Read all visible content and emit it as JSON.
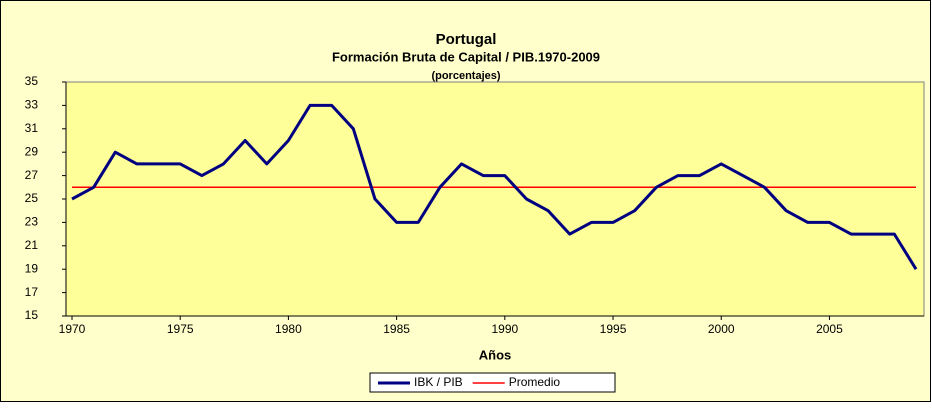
{
  "chart_data": {
    "type": "line",
    "title": "Portugal",
    "subtitle": "Formación Bruta de Capital / PIB.1970-2009",
    "subtitle2": "(porcentajes)",
    "x_label": "Años",
    "x": [
      1970,
      1971,
      1972,
      1973,
      1974,
      1975,
      1976,
      1977,
      1978,
      1979,
      1980,
      1981,
      1982,
      1983,
      1984,
      1985,
      1986,
      1987,
      1988,
      1989,
      1990,
      1991,
      1992,
      1993,
      1994,
      1995,
      1996,
      1997,
      1998,
      1999,
      2000,
      2001,
      2002,
      2003,
      2004,
      2005,
      2006,
      2007,
      2008,
      2009
    ],
    "series": [
      {
        "name": "IBK / PIB",
        "color": "#000080",
        "width": 3,
        "values": [
          25,
          26,
          29,
          28,
          28,
          28,
          27,
          28,
          30,
          28,
          30,
          33,
          33,
          31,
          25,
          23,
          23,
          26,
          28,
          27,
          27,
          25,
          24,
          22,
          23,
          23,
          24,
          26,
          27,
          27,
          28,
          27,
          26,
          24,
          23,
          23,
          22,
          22,
          22,
          19
        ]
      },
      {
        "name": "Promedio",
        "color": "#ff0000",
        "width": 1.5,
        "values": [
          26,
          26,
          26,
          26,
          26,
          26,
          26,
          26,
          26,
          26,
          26,
          26,
          26,
          26,
          26,
          26,
          26,
          26,
          26,
          26,
          26,
          26,
          26,
          26,
          26,
          26,
          26,
          26,
          26,
          26,
          26,
          26,
          26,
          26,
          26,
          26,
          26,
          26,
          26,
          26
        ]
      }
    ],
    "xlim": [
      1970,
      2009
    ],
    "xticks": [
      1970,
      1975,
      1980,
      1985,
      1990,
      1995,
      2000,
      2005
    ],
    "ylim": [
      15,
      35
    ],
    "yticks": [
      15,
      17,
      19,
      21,
      23,
      25,
      27,
      29,
      31,
      33,
      35
    ],
    "legend": "bottom"
  }
}
